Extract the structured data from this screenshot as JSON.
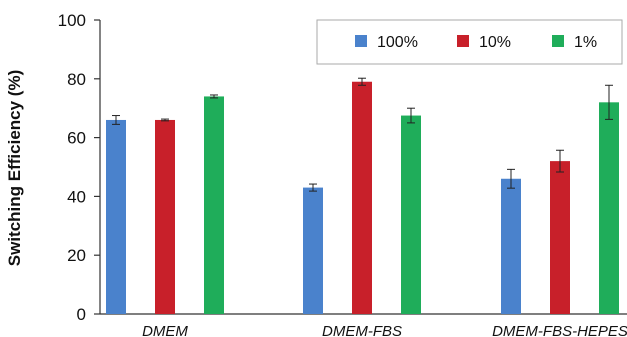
{
  "chart_data": {
    "type": "bar",
    "title": "",
    "xlabel": "",
    "ylabel": "Switching  Efficiency (%)",
    "ylim": [
      0,
      100
    ],
    "yticks": [
      "0",
      "20",
      "40",
      "60",
      "80",
      "100"
    ],
    "categories": [
      "DMEM",
      "DMEM-FBS",
      "DMEM-FBS-HEPES"
    ],
    "legend_position": "top-right",
    "grid": false,
    "series": [
      {
        "name": "100%",
        "color": "#4a82cc",
        "values": [
          66,
          43,
          46
        ],
        "errors": [
          1.5,
          1.2,
          3.2
        ]
      },
      {
        "name": "10%",
        "color": "#c8202a",
        "values": [
          66,
          79,
          52
        ],
        "errors": [
          0.3,
          1.2,
          3.7
        ]
      },
      {
        "name": "1%",
        "color": "#1fad5a",
        "values": [
          74,
          67.5,
          72
        ],
        "errors": [
          0.5,
          2.5,
          5.8
        ]
      }
    ]
  }
}
